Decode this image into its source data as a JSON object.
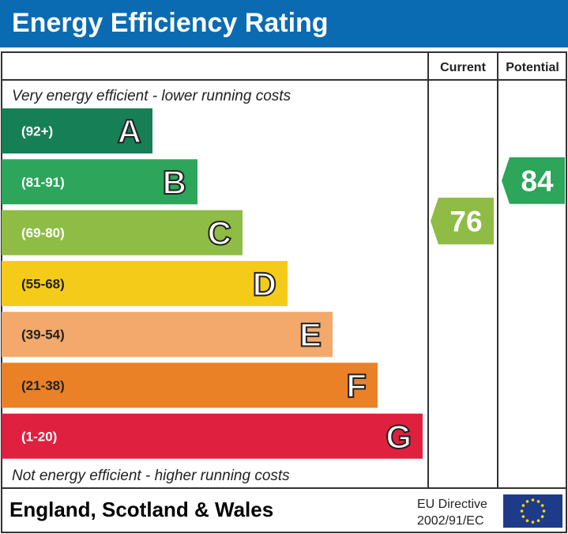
{
  "header": {
    "title": "Energy Efficiency Rating"
  },
  "columns": {
    "current": "Current",
    "potential": "Potential"
  },
  "notes": {
    "top": "Very energy efficient - lower running costs",
    "bottom": "Not energy efficient - higher running costs"
  },
  "footer": {
    "region": "England, Scotland & Wales",
    "directive_line1": "EU Directive",
    "directive_line2": "2002/91/EC",
    "flag_icon": "eu-flag-icon"
  },
  "colors": {
    "header": "#0b6bb2"
  },
  "chart_data": {
    "type": "bar",
    "categories": [
      "A",
      "B",
      "C",
      "D",
      "E",
      "F",
      "G"
    ],
    "ranges": [
      "(92+)",
      "(81-91)",
      "(69-80)",
      "(55-68)",
      "(39-54)",
      "(21-38)",
      "(1-20)"
    ],
    "colors": [
      "#167f56",
      "#2da55a",
      "#8fbc44",
      "#f5cb19",
      "#f2a96b",
      "#eb8127",
      "#e0203f"
    ],
    "current": {
      "value": 76,
      "band": "C",
      "color": "#8fbc44"
    },
    "potential": {
      "value": 84,
      "band": "B",
      "color": "#2da55a"
    }
  }
}
